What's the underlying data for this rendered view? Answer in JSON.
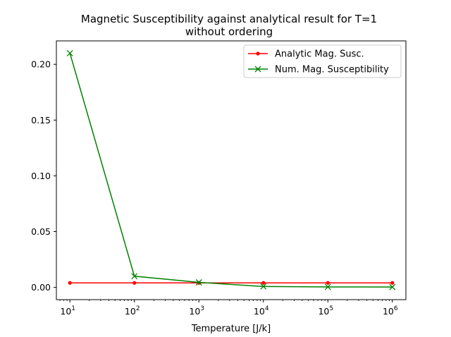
{
  "chart_data": {
    "type": "line",
    "title": "Magnetic Susceptibility against analytical result for T=1",
    "subtitle": "without ordering",
    "xlabel": "Temperature [J/k]",
    "ylabel": "",
    "xscale": "log",
    "x": [
      10,
      100,
      1000,
      10000,
      100000,
      1000000
    ],
    "x_tick_labels": [
      {
        "base": "10",
        "exp": "1"
      },
      {
        "base": "10",
        "exp": "2"
      },
      {
        "base": "10",
        "exp": "3"
      },
      {
        "base": "10",
        "exp": "4"
      },
      {
        "base": "10",
        "exp": "5"
      },
      {
        "base": "10",
        "exp": "6"
      }
    ],
    "y_ticks": [
      0.0,
      0.05,
      0.1,
      0.15,
      0.2
    ],
    "y_tick_labels": [
      "0.00",
      "0.05",
      "0.10",
      "0.15",
      "0.20"
    ],
    "ylim": [
      -0.011,
      0.221
    ],
    "grid": false,
    "legend_position": "top-right",
    "series": [
      {
        "name": "Analytic Mag. Susc.",
        "color": "#ff0000",
        "marker": "dot",
        "values": [
          0.004,
          0.004,
          0.004,
          0.004,
          0.004,
          0.004
        ]
      },
      {
        "name": "Num. Mag. Susceptibility",
        "color": "#008000",
        "marker": "x",
        "values": [
          0.21,
          0.01,
          0.0045,
          0.0008,
          0.0004,
          0.0003
        ]
      }
    ]
  }
}
